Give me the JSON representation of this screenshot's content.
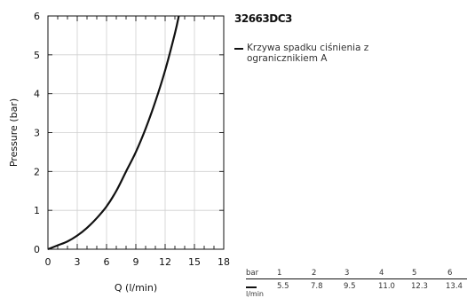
{
  "title": "32663DC3",
  "legend": {
    "label": "Krzywa spadku ciśnienia z ogranicznikiem A"
  },
  "chart_data": {
    "type": "line",
    "xlabel": "Q (l/min)",
    "ylabel": "Pressure (bar)",
    "xlim": [
      0,
      18
    ],
    "ylim": [
      0,
      6
    ],
    "xticks": [
      0,
      3,
      6,
      9,
      12,
      15,
      18
    ],
    "yticks": [
      0,
      1,
      2,
      3,
      4,
      5,
      6
    ],
    "grid": true,
    "legend_position": "right",
    "series": [
      {
        "name": "Krzywa spadku ciśnienia z ogranicznikiem A",
        "x": [
          0,
          1,
          2,
          3,
          4,
          5,
          6,
          7,
          8,
          9,
          10,
          11,
          12,
          13,
          13.4
        ],
        "y": [
          0,
          0.1,
          0.2,
          0.35,
          0.55,
          0.8,
          1.1,
          1.5,
          2.0,
          2.5,
          3.1,
          3.8,
          4.6,
          5.55,
          6.0
        ]
      }
    ]
  },
  "table": {
    "bar_label": "bar",
    "unit_label": "l/min",
    "pressures": [
      "1",
      "2",
      "3",
      "4",
      "5",
      "6"
    ],
    "flows": [
      "5.5",
      "7.8",
      "9.5",
      "11.0",
      "12.3",
      "13.4"
    ]
  }
}
